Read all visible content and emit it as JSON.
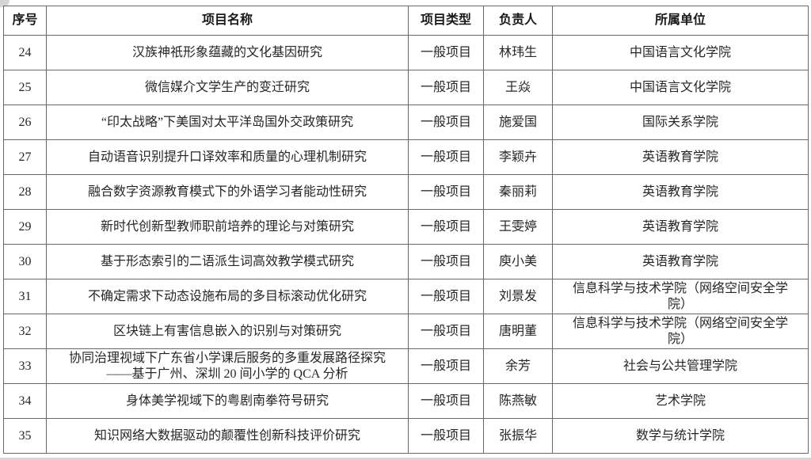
{
  "table": {
    "headers": [
      "序号",
      "项目名称",
      "项目类型",
      "负责人",
      "所属单位"
    ],
    "rows": [
      {
        "seq": "24",
        "name": "汉族神祇形象蕴藏的文化基因研究",
        "type": "一般项目",
        "leader": "林玮生",
        "unit": "中国语言文化学院"
      },
      {
        "seq": "25",
        "name": "微信媒介文学生产的变迁研究",
        "type": "一般项目",
        "leader": "王焱",
        "unit": "中国语言文化学院"
      },
      {
        "seq": "26",
        "name": "“印太战略”下美国对太平洋岛国外交政策研究",
        "type": "一般项目",
        "leader": "施爱国",
        "unit": "国际关系学院"
      },
      {
        "seq": "27",
        "name": "自动语音识别提升口译效率和质量的心理机制研究",
        "type": "一般项目",
        "leader": "李颖卉",
        "unit": "英语教育学院"
      },
      {
        "seq": "28",
        "name": "融合数字资源教育模式下的外语学习者能动性研究",
        "type": "一般项目",
        "leader": "秦丽莉",
        "unit": "英语教育学院"
      },
      {
        "seq": "29",
        "name": "新时代创新型教师职前培养的理论与对策研究",
        "type": "一般项目",
        "leader": "王雯婷",
        "unit": "英语教育学院"
      },
      {
        "seq": "30",
        "name": "基于形态索引的二语派生词高效教学模式研究",
        "type": "一般项目",
        "leader": "庾小美",
        "unit": "英语教育学院"
      },
      {
        "seq": "31",
        "name": "不确定需求下动态设施布局的多目标滚动优化研究",
        "type": "一般项目",
        "leader": "刘景发",
        "unit": "信息科学与技术学院（网络空间安全学\n院）"
      },
      {
        "seq": "32",
        "name": "区块链上有害信息嵌入的识别与对策研究",
        "type": "一般项目",
        "leader": "唐明董",
        "unit": "信息科学与技术学院（网络空间安全学\n院）"
      },
      {
        "seq": "33",
        "name": "协同治理视域下广东省小学课后服务的多重发展路径探究\n——基于广州、深圳 20 间小学的 QCA 分析",
        "type": "一般项目",
        "leader": "余芳",
        "unit": "社会与公共管理学院"
      },
      {
        "seq": "34",
        "name": "身体美学视域下的粤剧南拳符号研究",
        "type": "一般项目",
        "leader": "陈燕敏",
        "unit": "艺术学院"
      },
      {
        "seq": "35",
        "name": "知识网络大数据驱动的颠覆性创新科技评价研究",
        "type": "一般项目",
        "leader": "张振华",
        "unit": "数学与统计学院"
      }
    ]
  }
}
